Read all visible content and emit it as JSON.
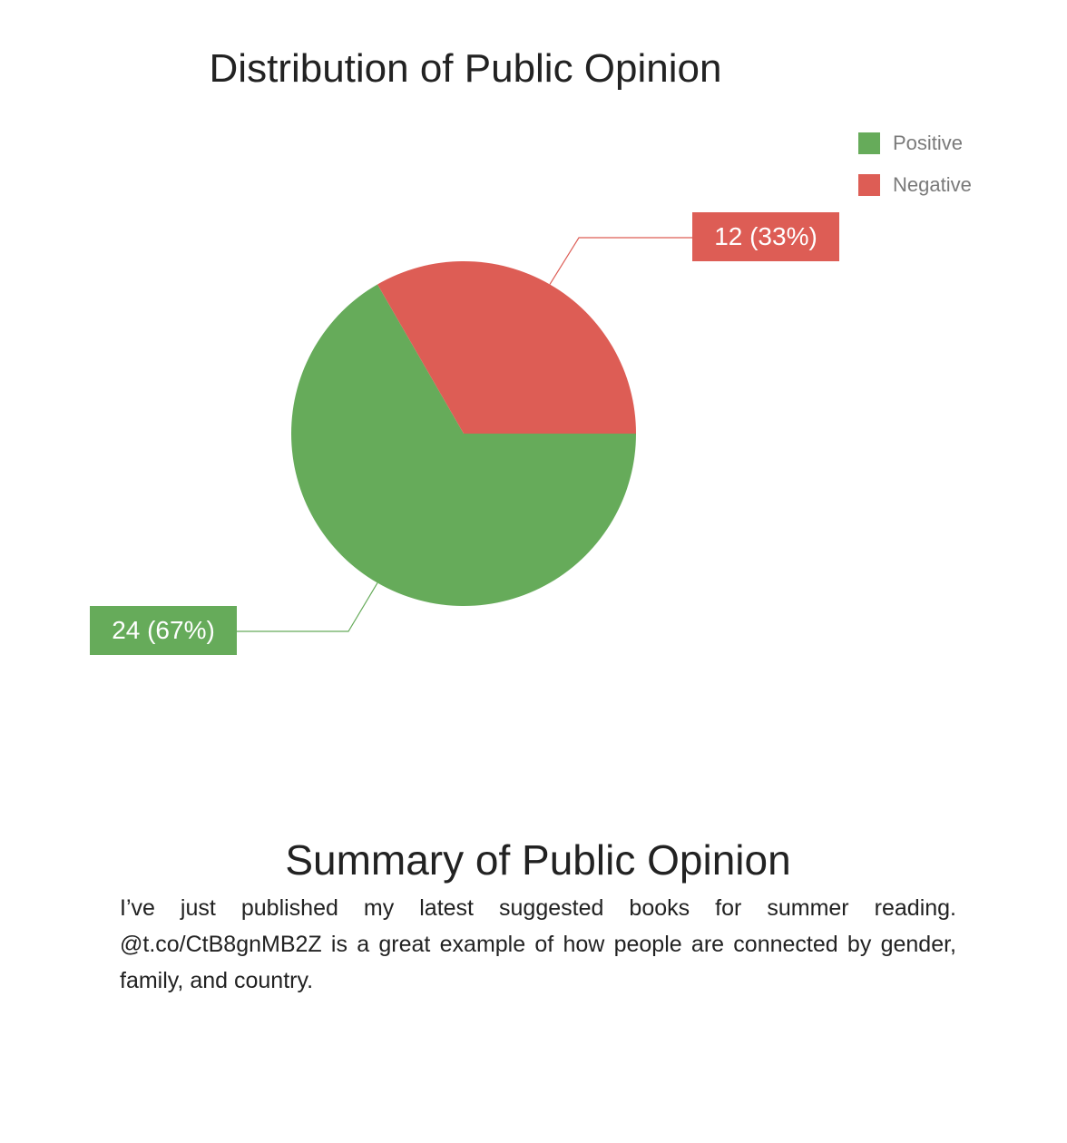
{
  "chart_data": {
    "type": "pie",
    "title": "Distribution of Public Opinion",
    "categories": [
      "Positive",
      "Negative"
    ],
    "values": [
      24,
      12
    ],
    "percentages": [
      67,
      33
    ],
    "data_labels": [
      "24 (67%)",
      "12 (33%)"
    ],
    "colors": [
      "#66ab5a",
      "#dd5d55"
    ],
    "legend": {
      "position": "top-right",
      "entries": [
        "Positive",
        "Negative"
      ]
    }
  },
  "summary": {
    "title": "Summary of Public Opinion",
    "text": "I’ve just published my latest suggested books for summer reading. @t.co/CtB8gnMB2Z is a great example of how people are connected by gender, family, and country."
  }
}
